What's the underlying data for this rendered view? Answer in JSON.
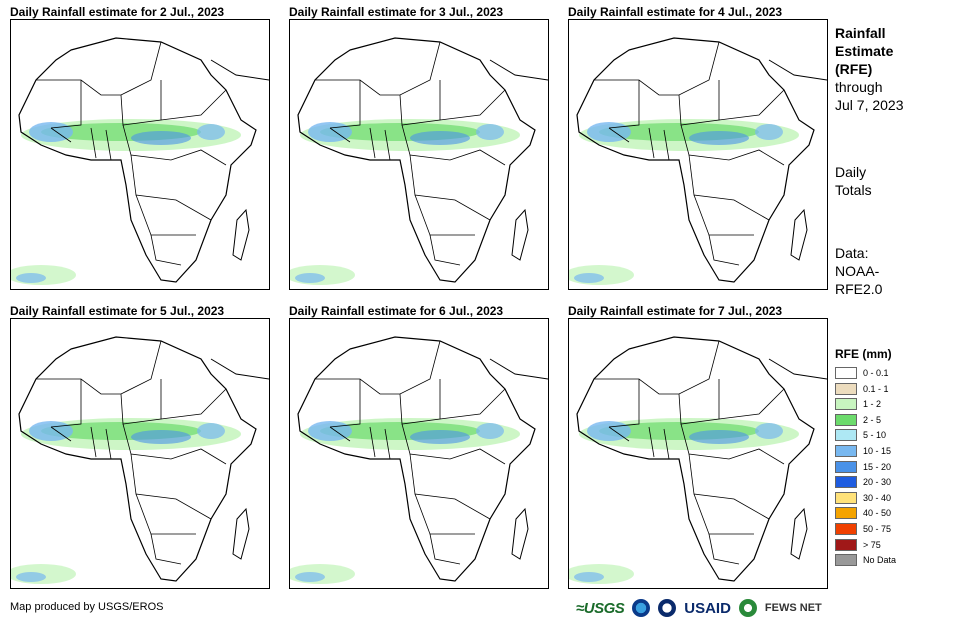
{
  "panels": [
    {
      "title": "Daily Rainfall estimate for 2 Jul., 2023"
    },
    {
      "title": "Daily Rainfall estimate for 3 Jul., 2023"
    },
    {
      "title": "Daily Rainfall estimate for 4 Jul., 2023"
    },
    {
      "title": "Daily Rainfall estimate for 5 Jul., 2023"
    },
    {
      "title": "Daily Rainfall estimate for 6 Jul., 2023"
    },
    {
      "title": "Daily Rainfall estimate for 7 Jul., 2023"
    }
  ],
  "sidebar": {
    "title_line1": "Rainfall",
    "title_line2": "Estimate",
    "title_line3": "(RFE)",
    "through_label": "through",
    "through_date": "Jul 7, 2023",
    "totals_line1": "Daily",
    "totals_line2": "Totals",
    "data_line1": "Data:",
    "data_line2": "NOAA-",
    "data_line3": "RFE2.0"
  },
  "legend": {
    "title": "RFE (mm)",
    "items": [
      {
        "label": "0 - 0.1",
        "color": "#ffffff"
      },
      {
        "label": "0.1 - 1",
        "color": "#ecdcbe"
      },
      {
        "label": "1 - 2",
        "color": "#c8f5c0"
      },
      {
        "label": "2 - 5",
        "color": "#6cdb6c"
      },
      {
        "label": "5 - 10",
        "color": "#aee8f4"
      },
      {
        "label": "10 - 15",
        "color": "#78b8f0"
      },
      {
        "label": "15 - 20",
        "color": "#4a92e8"
      },
      {
        "label": "20 - 30",
        "color": "#1e5ce0"
      },
      {
        "label": "30 - 40",
        "color": "#ffe27a"
      },
      {
        "label": "40 - 50",
        "color": "#f4a300"
      },
      {
        "label": "50 - 75",
        "color": "#f04000"
      },
      {
        "label": "> 75",
        "color": "#a01818"
      },
      {
        "label": "No Data",
        "color": "#999999"
      }
    ]
  },
  "footer": {
    "credit": "Map produced by USGS/EROS",
    "logos": {
      "usgs": "≈USGS",
      "usaid": "USAID",
      "fews": "FEWS NET"
    }
  }
}
